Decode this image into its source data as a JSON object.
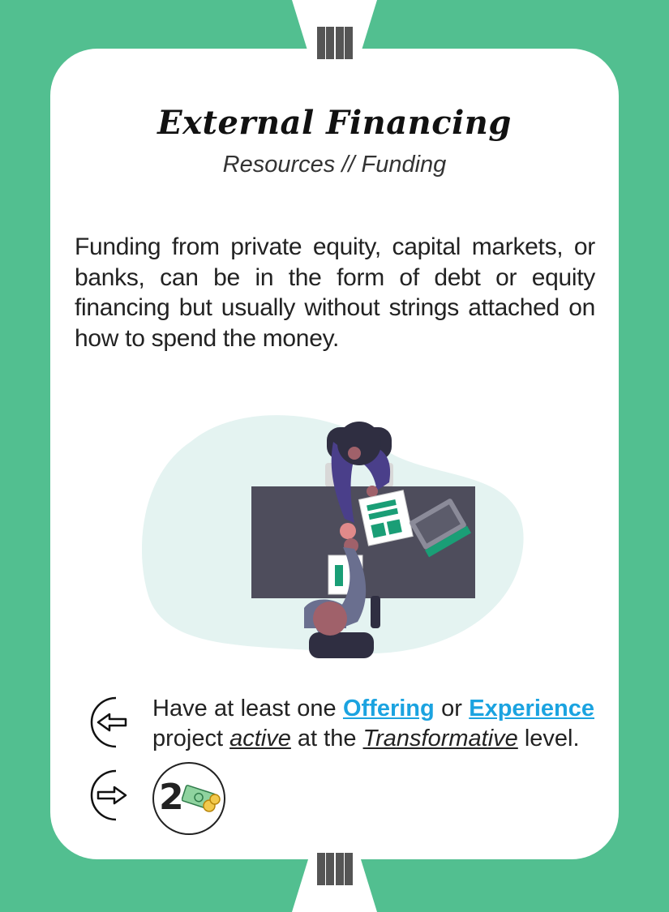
{
  "card": {
    "title": "External Financing",
    "subtitle": "Resources // Funding",
    "description": "Funding from private equity, capital markets, or banks, can be in the form of debt or equity financing  but usually without strings attached on how to spend the money.",
    "requirement": {
      "prefix": "Have at least one ",
      "link1": "Offering",
      "middle": " or ",
      "link2": "Experience",
      "line2_start": " project ",
      "active": "active",
      "at_the": " at the ",
      "level": "Transformative",
      "suffix": " level."
    },
    "reward": {
      "amount": "2",
      "icon": "money-icon"
    },
    "tier_marker": "IIII"
  },
  "colors": {
    "background": "#52bf90",
    "card": "#ffffff",
    "link": "#1ba3e0",
    "illustration_accent": "#1a9e76",
    "desk": "#4e4d5c"
  }
}
